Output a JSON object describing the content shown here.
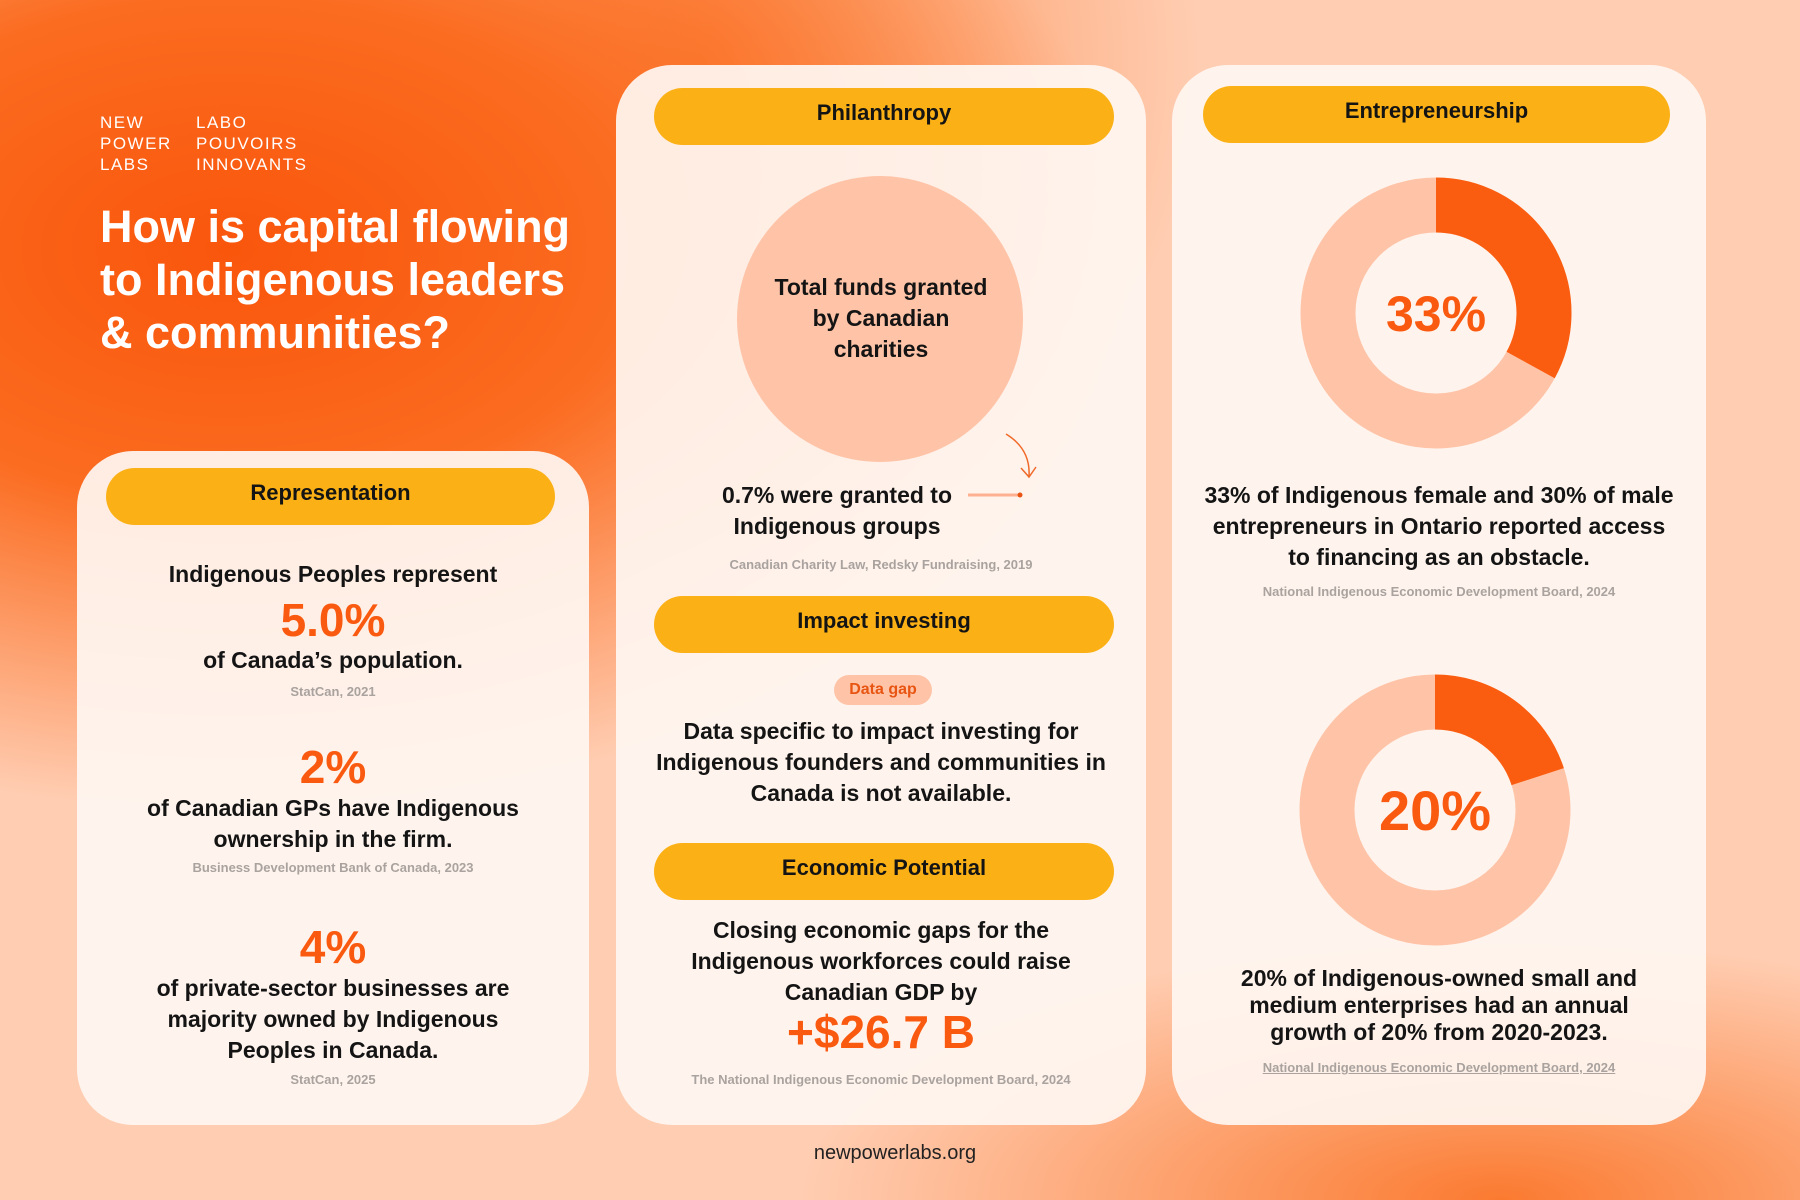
{
  "brand": {
    "en": [
      "NEW",
      "POWER",
      "LABS"
    ],
    "fr": [
      "LABO",
      "POUVOIRS",
      "INNOVANTS"
    ]
  },
  "title": "How is capital flowing to Indigenous leaders & communities?",
  "representation": {
    "heading": "Representation",
    "items": [
      {
        "lead": "Indigenous Peoples represent",
        "figure": "5.0%",
        "text": "of Canada’s population.",
        "source": "StatCan, 2021"
      },
      {
        "figure": "2%",
        "text": "of Canadian GPs have Indigenous ownership in the firm.",
        "source": "Business Development Bank of Canada, 2023"
      },
      {
        "figure": "4%",
        "text": "of private-sector businesses are majority owned by Indigenous Peoples in Canada.",
        "source": "StatCan, 2025"
      }
    ]
  },
  "philanthropy": {
    "heading": "Philanthropy",
    "circle": "Total funds granted by Canadian charities",
    "text": "0.7% were granted to Indigenous groups",
    "source": "Canadian Charity Law, Redsky Fundraising, 2019"
  },
  "impact_investing": {
    "heading": "Impact investing",
    "badge": "Data gap",
    "text": "Data specific to impact investing for Indigenous founders and communities in Canada is not available."
  },
  "economic_potential": {
    "heading": "Economic Potential",
    "text": "Closing economic gaps for the Indigenous workforces could raise Canadian GDP by",
    "figure": "+$26.7 B",
    "source": "The National Indigenous Economic Development Board, 2024"
  },
  "entrepreneurship": {
    "heading": "Entrepreneurship",
    "stats": [
      {
        "value": 33,
        "label": "33%",
        "text": "33% of Indigenous female and 30% of male entrepreneurs in Ontario reported access to financing as an obstacle.",
        "source": "National Indigenous Economic Development Board, 2024"
      },
      {
        "value": 20,
        "label": "20%",
        "text": "20% of Indigenous-owned small and medium enterprises had an annual growth of 20% from 2020-2023.",
        "source": "National Indigenous Economic Development Board, 2024"
      }
    ]
  },
  "footer": "newpowerlabs.org"
}
